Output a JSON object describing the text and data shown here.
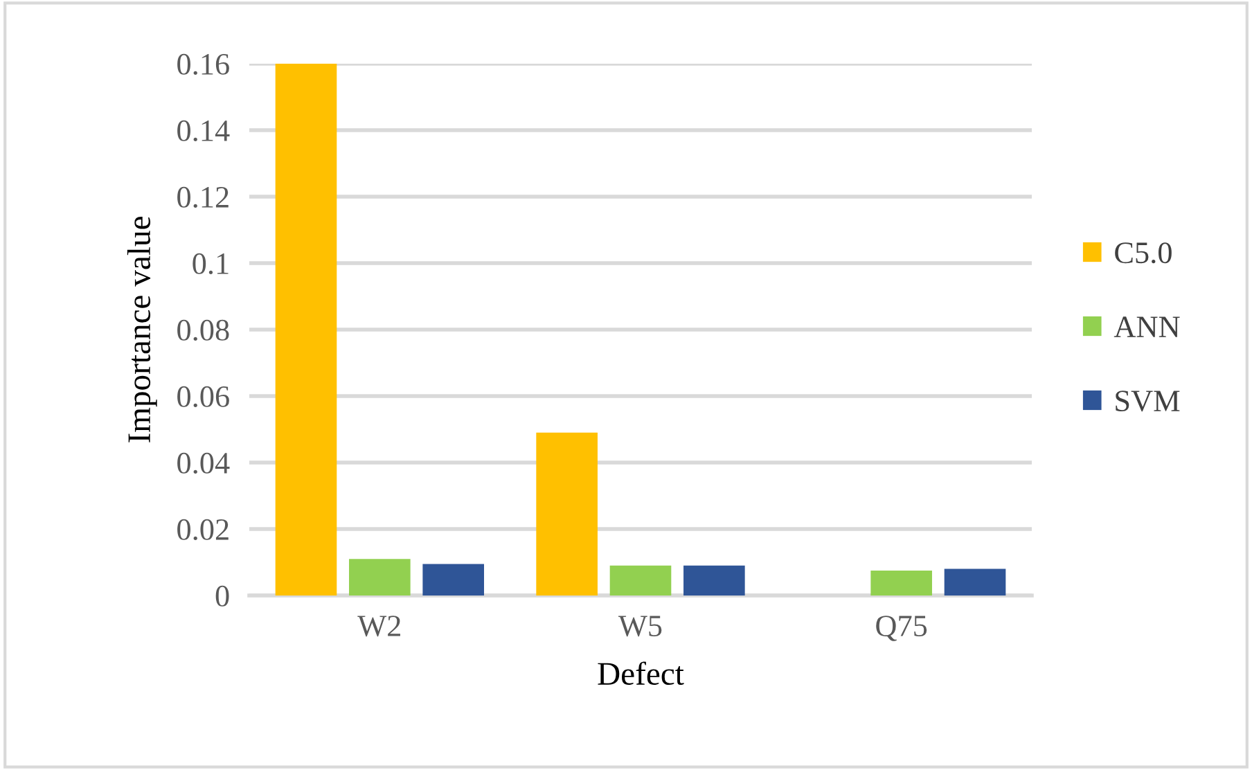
{
  "chart_data": {
    "type": "bar",
    "xlabel": "Defect",
    "ylabel": "Importance value",
    "categories": [
      "W2",
      "W5",
      "Q75"
    ],
    "series": [
      {
        "name": "C5.0",
        "color": "#ffc000",
        "values": [
          0.16,
          0.049,
          0
        ]
      },
      {
        "name": "ANN",
        "color": "#92d050",
        "values": [
          0.011,
          0.009,
          0.0075
        ]
      },
      {
        "name": "SVM",
        "color": "#2f5597",
        "values": [
          0.0095,
          0.009,
          0.008
        ]
      }
    ],
    "ylim": [
      0,
      0.16
    ],
    "yticks": [
      0,
      0.02,
      0.04,
      0.06,
      0.08,
      {
        "value": 0.1,
        "label": "0.1"
      },
      0.12,
      0.14,
      0.16
    ],
    "grid": "y",
    "legend": "right"
  }
}
